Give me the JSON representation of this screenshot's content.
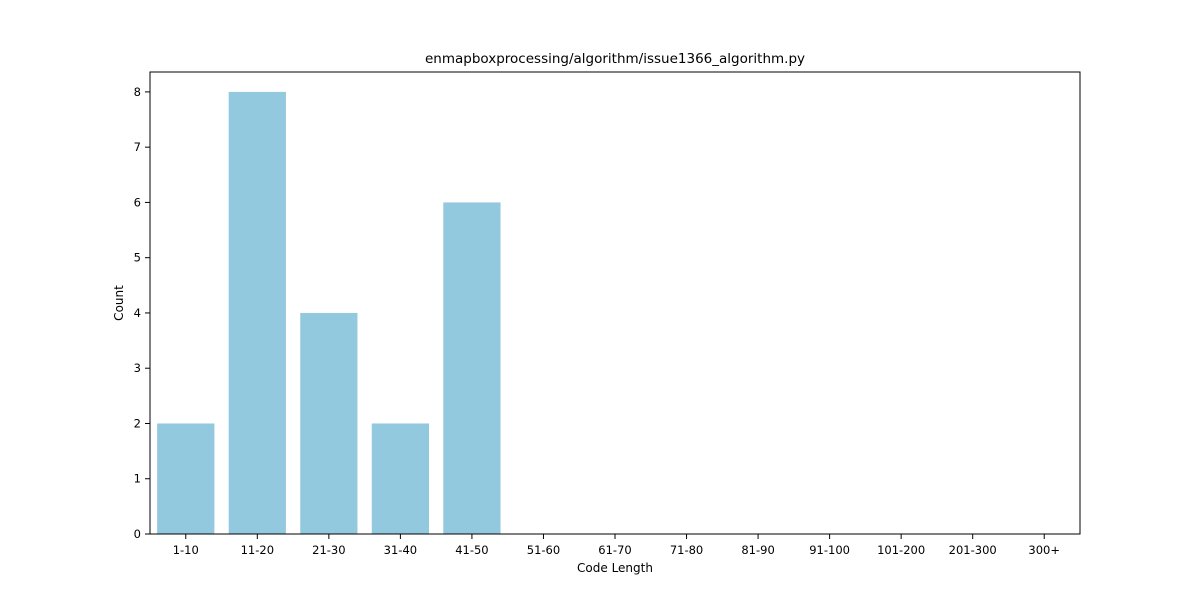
{
  "chart_data": {
    "type": "bar",
    "title": "enmapboxprocessing/algorithm/issue1366_algorithm.py",
    "xlabel": "Code Length",
    "ylabel": "Count",
    "categories": [
      "1-10",
      "11-20",
      "21-30",
      "31-40",
      "41-50",
      "51-60",
      "61-70",
      "71-80",
      "81-90",
      "91-100",
      "101-200",
      "201-300",
      "300+"
    ],
    "values": [
      2,
      8,
      4,
      2,
      6,
      0,
      0,
      0,
      0,
      0,
      0,
      0,
      0
    ],
    "ylim": [
      0,
      8.36
    ],
    "yticks": [
      0,
      1,
      2,
      3,
      4,
      5,
      6,
      7,
      8
    ],
    "bar_color": "#92c9de",
    "grid": false,
    "legend": "none"
  }
}
